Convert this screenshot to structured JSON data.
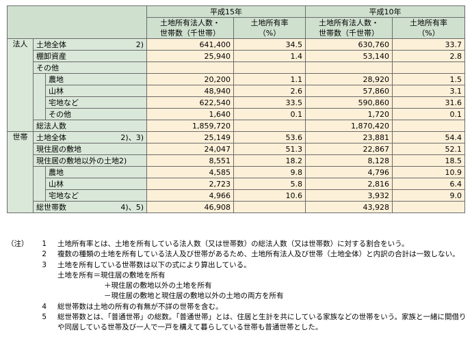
{
  "header": {
    "year1": "平成15年",
    "year2": "平成10年",
    "col_count": "土地所有法人数・\n世帯数（千世帯）",
    "col_rate": "土地所有率\n（%）"
  },
  "sections": {
    "corp": "法人",
    "household": "世帯"
  },
  "rows": [
    {
      "label": "土地全体",
      "note": "2)",
      "v15": "641,400",
      "r15": "34.5",
      "v10": "630,760",
      "r10": "33.7"
    },
    {
      "label": "棚卸資産",
      "note": "",
      "v15": "25,940",
      "r15": "1.4",
      "v10": "53,140",
      "r10": "2.8"
    },
    {
      "label": "その他",
      "note": "",
      "v15": "",
      "r15": "",
      "v10": "",
      "r10": ""
    },
    {
      "label": "農地",
      "note": "",
      "v15": "20,200",
      "r15": "1.1",
      "v10": "28,920",
      "r10": "1.5"
    },
    {
      "label": "山林",
      "note": "",
      "v15": "48,940",
      "r15": "2.6",
      "v10": "57,860",
      "r10": "3.1"
    },
    {
      "label": "宅地など",
      "note": "",
      "v15": "622,540",
      "r15": "33.5",
      "v10": "590,860",
      "r10": "31.6"
    },
    {
      "label": "その他",
      "note": "",
      "v15": "1,640",
      "r15": "0.1",
      "v10": "1,720",
      "r10": "0.1"
    },
    {
      "label": "総法人数",
      "note": "",
      "v15": "1,859,720",
      "r15": "",
      "v10": "1,870,420",
      "r10": ""
    },
    {
      "label": "土地全体",
      "note": "2)、3)",
      "v15": "25,149",
      "r15": "53.6",
      "v10": "23,881",
      "r10": "54.4"
    },
    {
      "label": "現住居の敷地",
      "note": "",
      "v15": "24,047",
      "r15": "51.3",
      "v10": "22,867",
      "r10": "52.1"
    },
    {
      "label": "現住居の敷地以外の土地",
      "note": "2)",
      "v15": "8,551",
      "r15": "18.2",
      "v10": "8,128",
      "r10": "18.5"
    },
    {
      "label": "農地",
      "note": "",
      "v15": "4,585",
      "r15": "9.8",
      "v10": "4,796",
      "r10": "10.9"
    },
    {
      "label": "山林",
      "note": "",
      "v15": "2,723",
      "r15": "5.8",
      "v10": "2,816",
      "r10": "6.4"
    },
    {
      "label": "宅地など",
      "note": "",
      "v15": "4,966",
      "r15": "10.6",
      "v10": "3,932",
      "r10": "9.0"
    },
    {
      "label": "総世帯数",
      "note": "4)、5)",
      "v15": "46,908",
      "r15": "",
      "v10": "43,928",
      "r10": ""
    }
  ],
  "notes": {
    "mark": "（注）",
    "n1": "1",
    "t1": "土地所有率とは、土地を所有している法人数（又は世帯数）の総法人数（又は世帯数）に対する割合をいう。",
    "n2": "2",
    "t2": "複数の種類の土地を所有している法人及び世帯があるため、土地所有法人及び世帯（土地全体）と内訳の合計は一致しない。",
    "n3": "3",
    "t3": "土地を所有している世帯数は以下の式により算出している。",
    "t3a": "土地を所有＝現住居の敷地を所有",
    "t3b": "＋現住居の敷地以外の土地を所有",
    "t3c": "－現住居の敷地と現住居の敷地以外の土地の両方を所有",
    "n4": "4",
    "t4": "総世帯数は土地の所有の有無が不詳の世帯を含む。",
    "n5": "5",
    "t5": "総世帯数とは、「普通世帯」の総数。「普通世帯」とは、住居と生計を共にしている家族などの世帯をいう。家族と一緒に間借りや同居している世帯及び一人で一戸を構えて暮らしている世帯も普通世帯とした。"
  }
}
